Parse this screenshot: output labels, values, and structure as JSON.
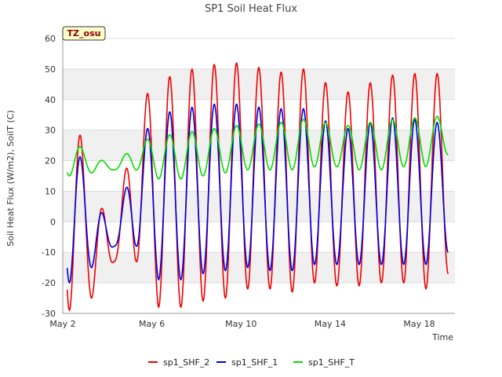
{
  "chart_data": {
    "type": "line",
    "title": "SP1 Soil Heat Flux",
    "xlabel": "Time",
    "ylabel": "Soil Heat Flux (W/m2), SoilT (C)",
    "badge": "TZ_osu",
    "xlim": [
      0,
      17.6
    ],
    "ylim": [
      -30,
      60
    ],
    "yticks": [
      -30,
      -20,
      -10,
      0,
      10,
      20,
      30,
      40,
      50,
      60
    ],
    "xticks": [
      {
        "day": 0,
        "label": "May 2"
      },
      {
        "day": 4,
        "label": "May 6"
      },
      {
        "day": 8,
        "label": "May 10"
      },
      {
        "day": 12,
        "label": "May 14"
      },
      {
        "day": 16,
        "label": "May 18"
      }
    ],
    "grid": "alternating horizontal bands",
    "legend_position": "bottom",
    "series": [
      {
        "name": "sp1_SHF_2",
        "color": "#ee0000",
        "days": [
          0.3,
          1.3,
          2.3,
          3.3,
          4.3,
          5.3,
          6.3,
          7.3,
          8.3,
          9.3,
          10.3,
          11.3,
          12.3,
          13.3,
          14.3,
          15.3,
          16.3,
          17.3
        ],
        "mins": [
          -29,
          -25,
          -13,
          -13,
          -28,
          -28,
          -26,
          -25,
          -22,
          -22,
          -23,
          -20,
          -21,
          -21,
          -20,
          -20,
          -22,
          -17
        ],
        "maxs": [
          42,
          14,
          -6,
          38,
          46,
          49,
          51,
          52,
          52,
          49,
          49,
          51,
          40,
          45,
          46,
          50,
          47,
          50
        ]
      },
      {
        "name": "sp1_SHF_1",
        "color": "#0000dd",
        "days": [
          0.3,
          1.3,
          2.3,
          3.3,
          4.3,
          5.3,
          6.3,
          7.3,
          8.3,
          9.3,
          10.3,
          11.3,
          12.3,
          13.3,
          14.3,
          15.3,
          16.3,
          17.3
        ],
        "mins": [
          -20,
          -15,
          -8,
          -8,
          -19,
          -19,
          -17,
          -16,
          -15,
          -16,
          -16,
          -14,
          -14,
          -14,
          -14,
          -14,
          -14,
          -10
        ],
        "maxs": [
          31,
          11,
          -6,
          26,
          35,
          37,
          38,
          39,
          38,
          37,
          37,
          37,
          29,
          32,
          33,
          35,
          32,
          33
        ]
      },
      {
        "name": "sp1_SHF_T",
        "color": "#00dd00",
        "days": [
          0.3,
          1.3,
          2.3,
          3.3,
          4.3,
          5.3,
          6.3,
          7.3,
          8.3,
          9.3,
          10.3,
          11.3,
          12.3,
          13.3,
          14.3,
          15.3,
          16.3,
          17.3
        ],
        "mins": [
          15,
          16,
          17,
          17,
          14,
          14,
          15,
          16,
          17,
          17,
          17,
          18,
          18,
          17,
          17,
          18,
          18,
          22
        ],
        "maxs": [
          27,
          22,
          18,
          26,
          28,
          29,
          30,
          31,
          32,
          32,
          33,
          34,
          31,
          32,
          33,
          34,
          34,
          35
        ]
      }
    ]
  }
}
